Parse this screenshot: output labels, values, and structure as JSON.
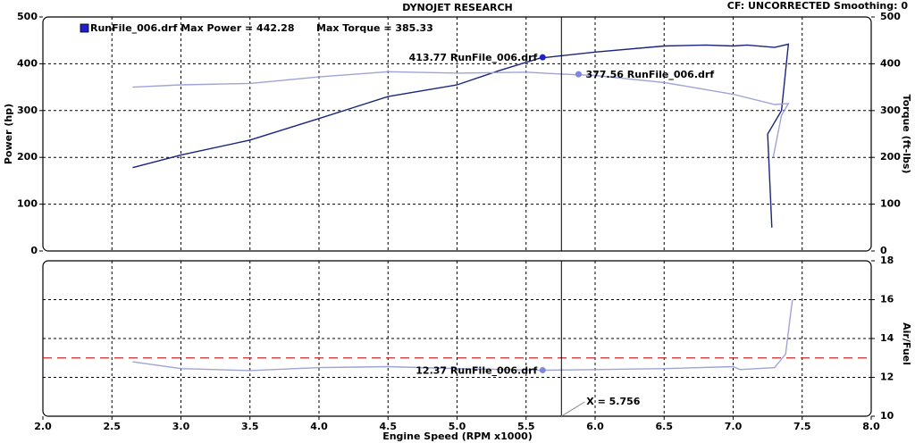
{
  "chart_data": [
    {
      "type": "line",
      "title": "DYNOJET RESEARCH",
      "status": "CF: UNCORRECTED  Smoothing: 0",
      "legend": "RunFile_006.drf Max Power = 442.28",
      "legend_extra": "Max Torque = 385.33",
      "ylabel": "Power (hp)",
      "y2label": "Torque (ft-lbs)",
      "xlim": [
        2,
        8
      ],
      "xticks": [
        2,
        2.5,
        3,
        3.5,
        4,
        4.5,
        5,
        5.5,
        6,
        6.5,
        7,
        7.5,
        8
      ],
      "ylim": [
        0,
        500
      ],
      "yticks": [
        0,
        100,
        200,
        300,
        400,
        500
      ],
      "y2lim": [
        0,
        500
      ],
      "y2ticks": [
        0,
        100,
        200,
        300,
        400,
        500
      ],
      "grid": true,
      "series": [
        {
          "color": "#1a237e",
          "x": [
            2.65,
            3.0,
            3.5,
            4.0,
            4.5,
            5.0,
            5.3,
            5.6,
            6.0,
            6.5,
            6.8,
            7.0,
            7.1,
            7.3,
            7.4,
            7.35,
            7.25,
            7.28
          ],
          "values": [
            178,
            205,
            237,
            283,
            330,
            355,
            385,
            412,
            425,
            438,
            440,
            438,
            440,
            435,
            442,
            300,
            250,
            50
          ]
        },
        {
          "color": "#9fa3d6",
          "axis": "y2",
          "x": [
            2.65,
            3.0,
            3.5,
            4.0,
            4.5,
            5.0,
            5.5,
            5.756,
            6.0,
            6.5,
            7.0,
            7.3,
            7.4,
            7.35,
            7.29
          ],
          "values": [
            350,
            355,
            358,
            372,
            383,
            380,
            382,
            378,
            375,
            360,
            335,
            313,
            315,
            290,
            200
          ]
        }
      ],
      "markers": [
        {
          "x": 5.62,
          "y": 413.77,
          "label": "413.77 RunFile_006.drf",
          "color": "#1f1fd0"
        },
        {
          "x": 5.88,
          "y": 377.56,
          "axis": "y2",
          "label": "377.56 RunFile_006.drf",
          "color": "#7f86e0"
        }
      ],
      "cursor": 5.756
    },
    {
      "type": "line",
      "xlabel": "Engine Speed (RPM x1000)",
      "y2label": "Air/Fuel",
      "xlim": [
        2,
        8
      ],
      "xticks": [
        {
          "value": 2,
          "label": "2.0"
        },
        2.5,
        {
          "value": 3,
          "label": "3.0"
        },
        3.5,
        {
          "value": 4,
          "label": "4.0"
        },
        4.5,
        {
          "value": 5,
          "label": "5.0"
        },
        5.5,
        {
          "value": 6,
          "label": "6.0"
        },
        6.5,
        {
          "value": 7,
          "label": "7.0"
        },
        7.5,
        {
          "value": 8,
          "label": "8.0"
        }
      ],
      "y2lim": [
        10,
        18
      ],
      "y2ticks": [
        10,
        12,
        14,
        16,
        18
      ],
      "grid": true,
      "ref_line": {
        "y": 13,
        "color": "#c62828"
      },
      "series": [
        {
          "color": "#9fa3d6",
          "axis": "y2",
          "x": [
            2.65,
            3.0,
            3.5,
            4.0,
            4.5,
            5.0,
            5.6,
            6.0,
            6.5,
            7.0,
            7.05,
            7.3,
            7.38,
            7.42,
            7.43
          ],
          "values": [
            12.8,
            12.45,
            12.35,
            12.5,
            12.55,
            12.45,
            12.37,
            12.4,
            12.45,
            12.55,
            12.4,
            12.5,
            13.2,
            15.5,
            16.0
          ]
        }
      ],
      "markers": [
        {
          "x": 5.62,
          "y": 12.37,
          "axis": "y2",
          "label": "12.37 RunFile_006.drf",
          "color": "#7f86e0"
        }
      ],
      "cursor": 5.756,
      "cursor_label": "X = 5.756"
    }
  ]
}
